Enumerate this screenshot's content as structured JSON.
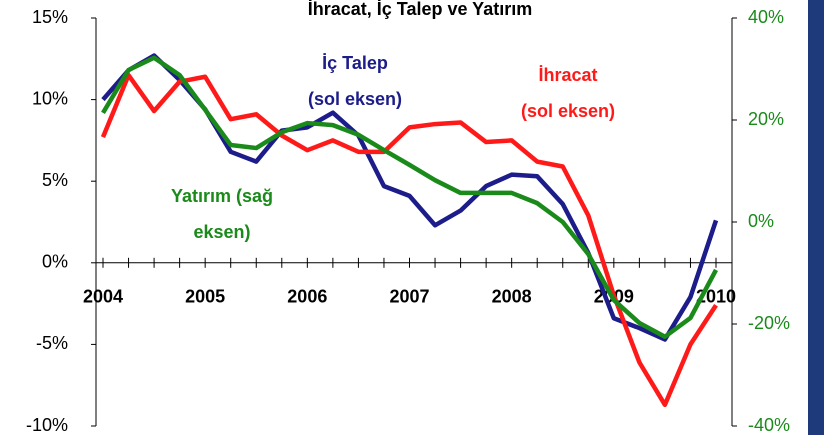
{
  "chart_data": {
    "type": "line",
    "title": "İhracat, İç Talep ve Yatırım",
    "categories": [
      "2004",
      null,
      null,
      null,
      "2005",
      null,
      null,
      null,
      "2006",
      null,
      null,
      null,
      "2007",
      null,
      null,
      null,
      "2008",
      null,
      null,
      null,
      "2009",
      null,
      null,
      null,
      "2010"
    ],
    "series": [
      {
        "label": [
          "İç Talep",
          "(sol eksen)"
        ],
        "color": "#1c1c8a",
        "axis": "y",
        "values": [
          10.0,
          11.8,
          12.7,
          11.2,
          9.4,
          6.8,
          6.2,
          8.1,
          8.3,
          9.2,
          7.8,
          4.7,
          4.1,
          2.3,
          3.2,
          4.7,
          5.4,
          5.3,
          3.6,
          0.6,
          -3.4,
          -4.0,
          -4.7,
          -2.1,
          2.6
        ]
      },
      {
        "label": [
          "İhracat",
          "(sol eksen)"
        ],
        "color": "#ff1a1a",
        "axis": "y",
        "values": [
          7.7,
          11.5,
          9.3,
          11.1,
          11.4,
          8.8,
          9.1,
          7.8,
          6.9,
          7.5,
          6.8,
          6.8,
          8.3,
          8.5,
          8.6,
          7.4,
          7.5,
          6.2,
          5.9,
          2.9,
          -2.0,
          -6.1,
          -8.7,
          -5.0,
          -2.6
        ]
      },
      {
        "label": [
          "Yatırım (sağ",
          "eksen)"
        ],
        "color": "#1a8a1a",
        "axis": "y2",
        "values": [
          21.4,
          29.8,
          32.2,
          28.8,
          22.0,
          15.1,
          14.5,
          17.6,
          19.4,
          19.0,
          17.1,
          14.1,
          11.2,
          8.2,
          5.7,
          5.7,
          5.7,
          3.7,
          0.0,
          -6.3,
          -15.3,
          -19.8,
          -22.5,
          -18.8,
          -9.4
        ]
      }
    ],
    "ylim": [
      -10,
      15
    ],
    "yticks": [
      {
        "value": -10,
        "label": "-10%"
      },
      {
        "value": -5,
        "label": "-5%"
      },
      {
        "value": 0,
        "label": "0%"
      },
      {
        "value": 5,
        "label": "5%"
      },
      {
        "value": 10,
        "label": "10%"
      },
      {
        "value": 15,
        "label": "15%"
      }
    ],
    "y2lim": [
      -40,
      40
    ],
    "y2ticks": [
      {
        "value": -40,
        "label": "-40%"
      },
      {
        "value": -20,
        "label": "-20%"
      },
      {
        "value": 0,
        "label": "0%"
      },
      {
        "value": 20,
        "label": "20%"
      },
      {
        "value": 40,
        "label": "40%"
      }
    ],
    "y2color": "#1a8a1a"
  }
}
